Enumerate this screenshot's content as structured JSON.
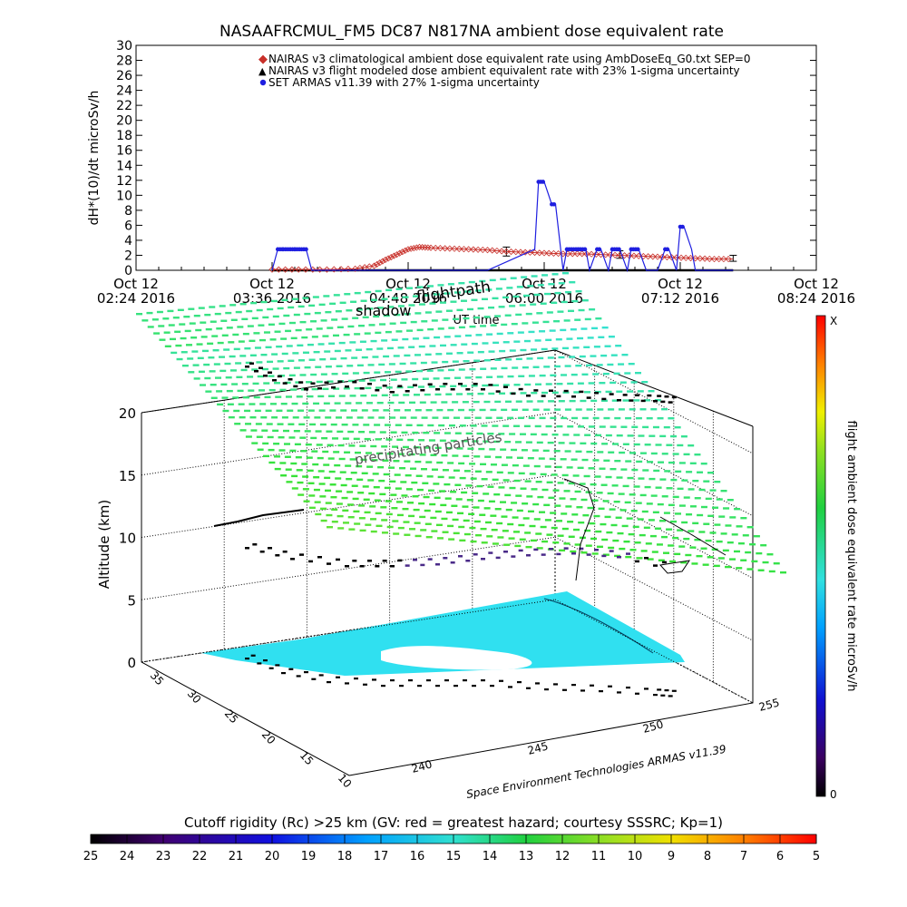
{
  "chart_data": [
    {
      "type": "line",
      "title": "NASAAFRCMUL_FM5 DC87 N817NA ambient dose equivalent rate",
      "xlabel": "UT time",
      "ylabel": "dH*(10)/dt microSv/h",
      "ylim": [
        0,
        30
      ],
      "yticks": [
        0,
        2,
        4,
        6,
        8,
        10,
        12,
        14,
        16,
        18,
        20,
        22,
        24,
        26,
        28,
        30
      ],
      "xlim": [
        "02:24",
        "08:24"
      ],
      "xtick_labels": [
        {
          "t": "02:24",
          "top": "Oct 12",
          "bottom": "02:24 2016"
        },
        {
          "t": "03:36",
          "top": "Oct 12",
          "bottom": "03:36 2016"
        },
        {
          "t": "04:48",
          "top": "Oct 12",
          "bottom": "04:48 2016"
        },
        {
          "t": "06:00",
          "top": "Oct 12",
          "bottom": "06:00 2016"
        },
        {
          "t": "07:12",
          "top": "Oct 12",
          "bottom": "07:12 2016"
        },
        {
          "t": "08:24",
          "top": "Oct 12",
          "bottom": "08:24 2016"
        }
      ],
      "legend_position": "top-right",
      "series": [
        {
          "name": "NAIRAS v3 climatological ambient dose equivalent rate using AmbDoseEq_G0.txt SEP=0",
          "color": "#c8302a",
          "marker": "diamond",
          "x": [
            "03:36",
            "03:50",
            "04:05",
            "04:20",
            "04:30",
            "04:36",
            "04:42",
            "04:48",
            "04:54",
            "05:00",
            "05:10",
            "05:20",
            "05:30",
            "05:40",
            "05:50",
            "06:00",
            "06:10",
            "06:20",
            "06:30",
            "06:40",
            "06:50",
            "07:00",
            "07:10",
            "07:20",
            "07:30",
            "07:40"
          ],
          "values": [
            0.1,
            0.1,
            0.1,
            0.2,
            0.6,
            1.4,
            2.1,
            2.8,
            3.1,
            3.0,
            2.9,
            2.8,
            2.7,
            2.5,
            2.4,
            2.3,
            2.2,
            2.2,
            2.1,
            2.0,
            1.9,
            1.8,
            1.7,
            1.6,
            1.5,
            1.5
          ]
        },
        {
          "name": "NAIRAS v3 flight modeled dose ambient equivalent rate with 23% 1-sigma uncertainty",
          "color": "#000000",
          "marker": "triangle",
          "error_bars": [
            {
              "x": "05:40",
              "y": 2.5,
              "err": 0.6
            },
            {
              "x": "06:40",
              "y": 2.1,
              "err": 0.5
            },
            {
              "x": "07:40",
              "y": 1.6,
              "err": 0.4
            }
          ]
        },
        {
          "name": "SET ARMAS v11.39 with 27% 1-sigma uncertainty",
          "color": "#1f1fe0",
          "marker": "filled-circle",
          "x": [
            "03:36",
            "03:39",
            "03:42",
            "03:48",
            "03:54",
            "03:57",
            "04:00",
            "04:30",
            "05:00",
            "05:30",
            "05:55",
            "05:57",
            "06:00",
            "06:04",
            "06:06",
            "06:10",
            "06:12",
            "06:18",
            "06:22",
            "06:24",
            "06:28",
            "06:30",
            "06:34",
            "06:36",
            "06:40",
            "06:44",
            "06:46",
            "06:50",
            "06:54",
            "07:00",
            "07:04",
            "07:06",
            "07:10",
            "07:12",
            "07:14",
            "07:18",
            "07:20",
            "07:30",
            "07:40"
          ],
          "values": [
            0,
            2.8,
            2.8,
            2.8,
            2.8,
            0,
            0,
            0,
            0,
            0,
            2.8,
            11.8,
            11.8,
            8.8,
            8.8,
            0,
            2.8,
            2.8,
            2.8,
            0,
            2.8,
            2.8,
            0,
            2.8,
            2.8,
            0,
            2.8,
            2.8,
            0,
            0,
            2.8,
            2.8,
            0,
            5.8,
            5.8,
            2.8,
            0,
            0,
            0
          ]
        }
      ]
    },
    {
      "type": "scatter",
      "subtype": "3d-surface",
      "title": "shadow",
      "annotation_a": "flightpath",
      "annotation_b": "precipitating particles",
      "zlabel": "Altitude (km)",
      "zticks": [
        "0",
        "5",
        "10",
        "15",
        "20"
      ],
      "lat_ticks": [
        "10",
        "15",
        "20",
        "25",
        "30",
        "35"
      ],
      "lon_ticks": [
        "240",
        "245",
        "250",
        "255"
      ],
      "credit": "Space Environment Technologies ARMAS v11.39",
      "colorbar": {
        "label": "flight ambient dose equivalent rate microSv/h",
        "top_label": "X",
        "bottom_label": "0"
      }
    },
    {
      "type": "heatmap",
      "subtype": "colorbar",
      "title": "Cutoff rigidity (Rc) >25 km (GV: red = greatest hazard; courtesy SSSRC; Kp=1)",
      "ticks": [
        "25",
        "24",
        "23",
        "22",
        "21",
        "20",
        "19",
        "18",
        "17",
        "16",
        "15",
        "14",
        "13",
        "12",
        "11",
        "10",
        "9",
        "8",
        "7",
        "6",
        "5"
      ]
    }
  ]
}
